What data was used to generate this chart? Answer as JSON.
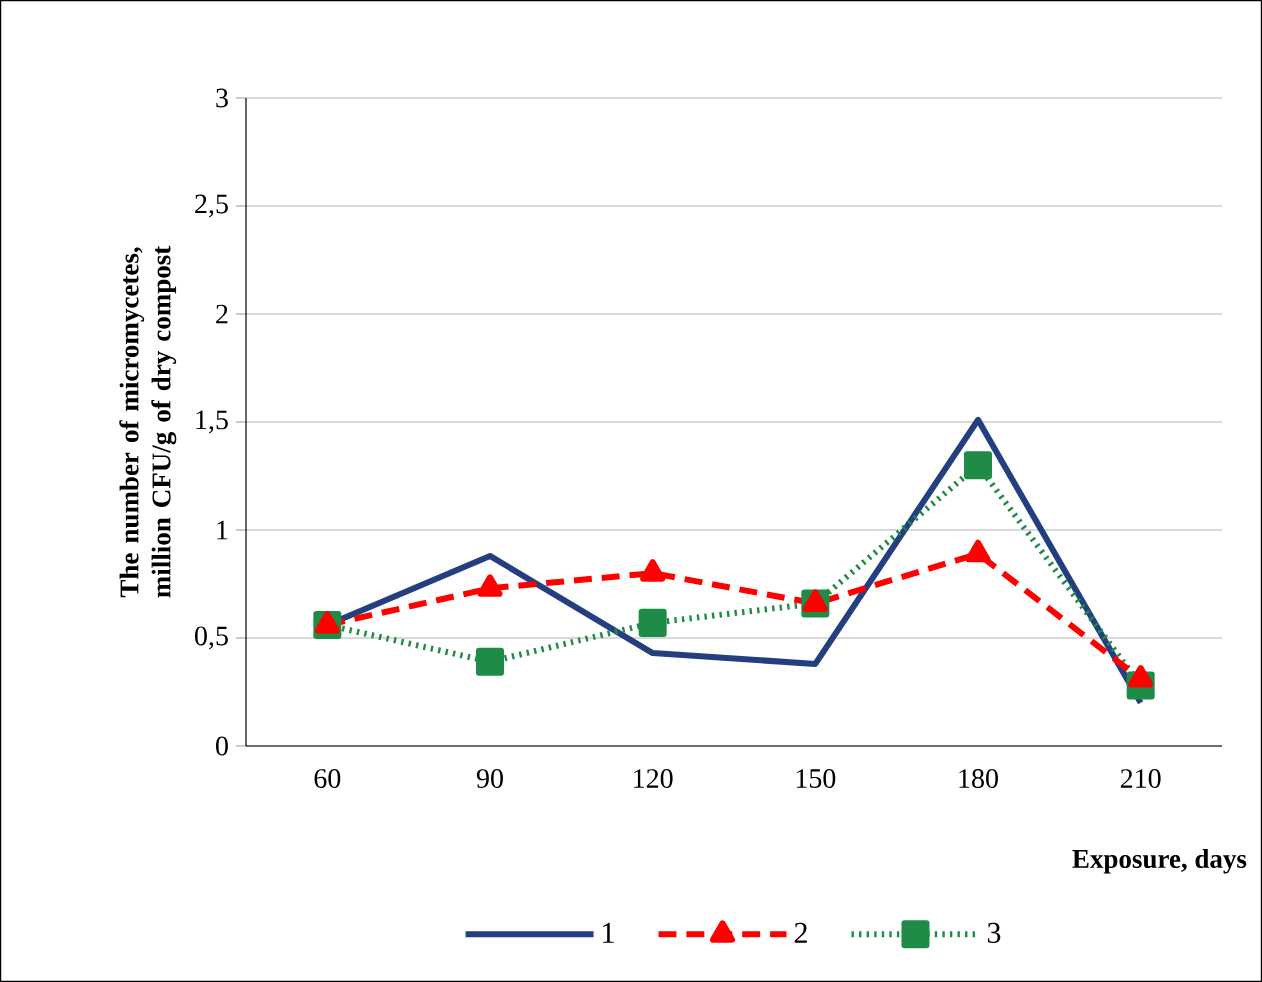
{
  "chart_data": {
    "type": "line",
    "ylabel": "The number of micromycetes, million CFU/g of dry compost",
    "xlabel": "Exposure, days",
    "categories": [
      "60",
      "90",
      "120",
      "150",
      "180",
      "210"
    ],
    "ylim": [
      0,
      3
    ],
    "yticks": [
      0,
      {
        "value": 0.5,
        "label": "0,5"
      },
      1,
      {
        "value": 1.5,
        "label": "1,5"
      },
      2,
      {
        "value": 2.5,
        "label": "2,5"
      },
      3
    ],
    "grid": "y",
    "legend": "bottom",
    "series": [
      {
        "name": "1",
        "color": "#243f7f",
        "marker": "none",
        "line_style": "solid",
        "values": [
          0.56,
          0.88,
          0.43,
          0.38,
          1.51,
          0.2
        ]
      },
      {
        "name": "2",
        "color": "#ff0000",
        "marker": "triangle",
        "line_style": "dashed",
        "values": [
          0.56,
          0.73,
          0.8,
          0.66,
          0.89,
          0.31
        ]
      },
      {
        "name": "3",
        "color": "#1e8c46",
        "marker": "square",
        "line_style": "dotted",
        "values": [
          0.56,
          0.39,
          0.57,
          0.66,
          1.3,
          0.28
        ]
      }
    ]
  }
}
